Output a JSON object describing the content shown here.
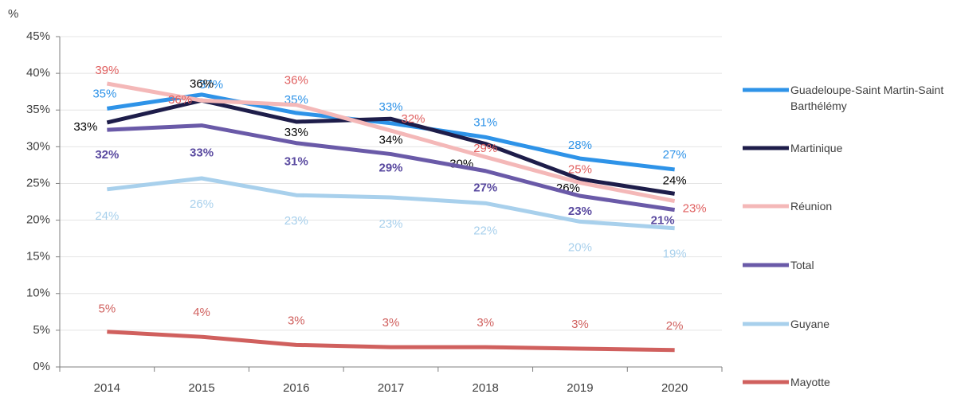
{
  "chart_data": {
    "type": "line",
    "ylabel": "%",
    "categories": [
      "2014",
      "2015",
      "2016",
      "2017",
      "2018",
      "2019",
      "2020"
    ],
    "ylim": [
      0,
      45
    ],
    "yticks": [
      {
        "value": 0,
        "label": "0%"
      },
      {
        "value": 5,
        "label": "5%"
      },
      {
        "value": 10,
        "label": "10%"
      },
      {
        "value": 15,
        "label": "15%"
      },
      {
        "value": 20,
        "label": "20%"
      },
      {
        "value": 25,
        "label": "25%"
      },
      {
        "value": 30,
        "label": "30%"
      },
      {
        "value": 35,
        "label": "35%"
      },
      {
        "value": 40,
        "label": "40%"
      },
      {
        "value": 45,
        "label": "45%"
      }
    ],
    "grid": true,
    "legend": "right",
    "series": [
      {
        "name": "Guadeloupe-Saint Martin-Saint Barthélémy",
        "color": "#2e93e8",
        "values": [
          35.2,
          37.1,
          34.6,
          33.2,
          31.3,
          28.4,
          26.9
        ],
        "value_labels": [
          "35%",
          "37%",
          "35%",
          "33%",
          "31%",
          "28%",
          "27%"
        ]
      },
      {
        "name": "Martinique",
        "color": "#1e1d4a",
        "values": [
          33.3,
          36.3,
          33.4,
          33.8,
          30.4,
          25.6,
          23.6
        ],
        "value_labels": [
          "33%",
          "36%",
          "33%",
          "34%",
          "30%",
          "26%",
          "24%"
        ]
      },
      {
        "name": "Réunion",
        "color": "#f4b8b8",
        "values": [
          38.6,
          36.3,
          35.7,
          32.2,
          28.6,
          25.1,
          22.6
        ],
        "value_labels": [
          "39%",
          "36%",
          "36%",
          "32%",
          "29%",
          "25%",
          "23%"
        ]
      },
      {
        "name": "Total",
        "color": "#6a5aa8",
        "values": [
          32.3,
          32.9,
          30.5,
          29.0,
          26.7,
          23.3,
          21.4
        ],
        "value_labels": [
          "32%",
          "33%",
          "31%",
          "29%",
          "27%",
          "23%",
          "21%"
        ]
      },
      {
        "name": "Guyane",
        "color": "#a8d0ec",
        "values": [
          24.2,
          25.7,
          23.4,
          23.1,
          22.3,
          19.8,
          18.9
        ],
        "value_labels": [
          "24%",
          "26%",
          "23%",
          "23%",
          "22%",
          "20%",
          "19%"
        ]
      },
      {
        "name": "Mayotte",
        "color": "#d0605e",
        "values": [
          4.8,
          4.1,
          3.0,
          2.7,
          2.7,
          2.5,
          2.3
        ],
        "value_labels": [
          "5%",
          "4%",
          "3%",
          "3%",
          "3%",
          "3%",
          "2%"
        ]
      }
    ]
  }
}
